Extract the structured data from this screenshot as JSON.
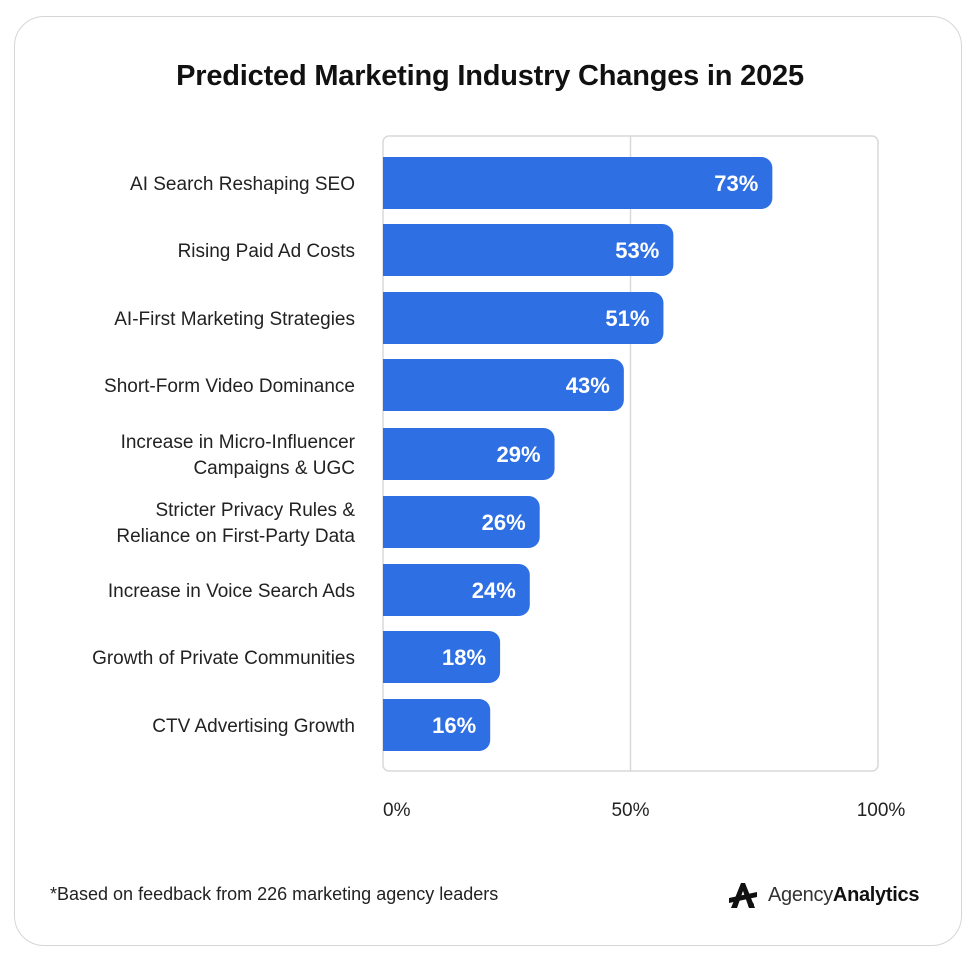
{
  "chart_data": {
    "type": "bar",
    "orientation": "horizontal",
    "title": "Predicted Marketing Industry Changes in 2025",
    "categories": [
      [
        "AI Search Reshaping SEO"
      ],
      [
        "Rising Paid Ad Costs"
      ],
      [
        "AI-First Marketing Strategies"
      ],
      [
        "Short-Form Video Dominance"
      ],
      [
        "Increase in Micro-Influencer",
        "Campaigns & UGC"
      ],
      [
        "Stricter Privacy Rules &",
        "Reliance on First-Party Data"
      ],
      [
        "Increase in Voice Search Ads"
      ],
      [
        "Growth of Private Communities"
      ],
      [
        "CTV Advertising Growth"
      ]
    ],
    "values": [
      73,
      53,
      51,
      43,
      29,
      26,
      24,
      18,
      16
    ],
    "data_labels": [
      "73%",
      "53%",
      "51%",
      "43%",
      "29%",
      "26%",
      "24%",
      "18%",
      "16%"
    ],
    "xlim": [
      0,
      100
    ],
    "x_ticks": [
      0,
      50,
      100
    ],
    "x_tick_labels": [
      "0%",
      "50%",
      "100%"
    ],
    "grid": true,
    "bar_color": "#2f6fe4"
  },
  "footnote": "*Based on feedback from 226 marketing agency leaders",
  "brand": {
    "name_light": "Agency",
    "name_bold": "Analytics",
    "logo_icon": "agencyanalytics-logo-icon"
  }
}
